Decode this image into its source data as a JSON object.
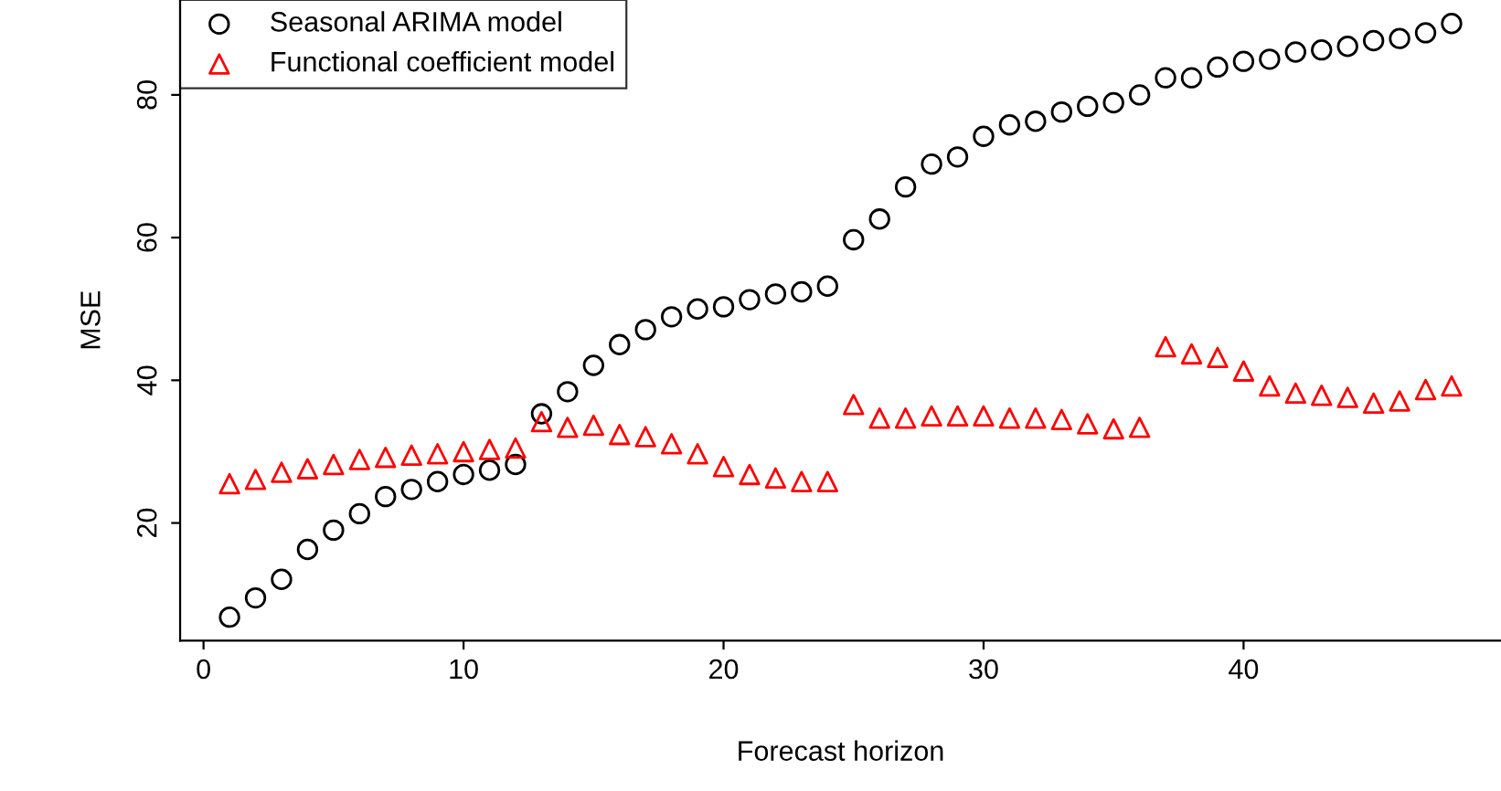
{
  "chart_data": {
    "type": "scatter",
    "xlabel": "Forecast horizon",
    "ylabel": "MSE",
    "x": [
      1,
      2,
      3,
      4,
      5,
      6,
      7,
      8,
      9,
      10,
      11,
      12,
      13,
      14,
      15,
      16,
      17,
      18,
      19,
      20,
      21,
      22,
      23,
      24,
      25,
      26,
      27,
      28,
      29,
      30,
      31,
      32,
      33,
      34,
      35,
      36,
      37,
      38,
      39,
      40,
      41,
      42,
      43,
      44,
      45,
      46,
      47,
      48
    ],
    "series": [
      {
        "name": "Seasonal ARIMA model",
        "color": "#000000",
        "marker": "circle",
        "values": [
          6.8,
          9.5,
          12.1,
          16.3,
          19.0,
          21.3,
          23.7,
          24.7,
          25.8,
          26.8,
          27.4,
          28.2,
          35.3,
          38.4,
          42.1,
          45.0,
          47.1,
          48.9,
          50.0,
          50.3,
          51.3,
          52.1,
          52.4,
          53.2,
          59.7,
          62.6,
          67.1,
          70.3,
          71.3,
          74.2,
          75.8,
          76.3,
          77.6,
          78.4,
          78.9,
          80.0,
          82.4,
          82.4,
          83.9,
          84.7,
          85.0,
          86.0,
          86.3,
          86.8,
          87.6,
          87.9,
          88.7,
          90.0
        ]
      },
      {
        "name": "Functional coefficient model",
        "color": "#ff0000",
        "marker": "triangle",
        "values": [
          25.5,
          26.1,
          27.1,
          27.6,
          28.2,
          28.9,
          29.2,
          29.5,
          29.7,
          30.0,
          30.3,
          30.5,
          34.2,
          33.4,
          33.7,
          32.4,
          32.1,
          31.1,
          29.7,
          27.9,
          26.8,
          26.3,
          25.8,
          25.8,
          36.6,
          34.7,
          34.7,
          35.0,
          35.0,
          35.0,
          34.7,
          34.7,
          34.5,
          33.9,
          33.2,
          33.4,
          44.7,
          43.7,
          43.2,
          41.3,
          39.2,
          38.2,
          37.9,
          37.6,
          36.8,
          37.1,
          38.7,
          39.2
        ]
      }
    ],
    "xlim": [
      -0.9,
      49.9
    ],
    "ylim": [
      3.5,
      93.3
    ],
    "xticks": [
      0,
      10,
      20,
      30,
      40
    ],
    "yticks": [
      20,
      40,
      60,
      80
    ],
    "grid": false,
    "legend": "top left"
  }
}
